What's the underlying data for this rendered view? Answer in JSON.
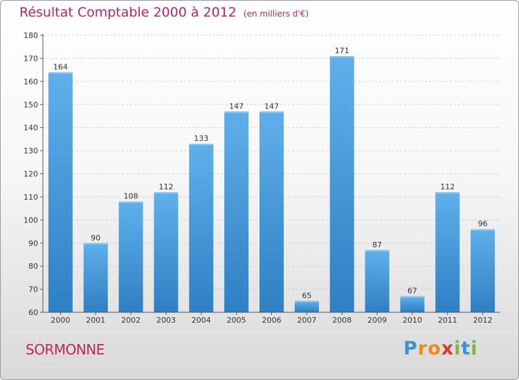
{
  "title": "Résultat Comptable 2000 à 2012",
  "subtitle": "(en milliers d'€)",
  "town": "SORMONNE",
  "logo": {
    "letters": [
      "P",
      "r",
      "o",
      "x",
      "i",
      "t",
      "i"
    ],
    "colors": [
      "#3f8fd2",
      "#f08a1c",
      "#f08a1c",
      "#d93a2b",
      "#7ab648",
      "#3f8fd2",
      "#7ab648"
    ]
  },
  "colors": {
    "bar_top": "#5fb0ea",
    "bar_bottom": "#2f7fc4",
    "title": "#c0245c"
  },
  "chart_data": {
    "type": "bar",
    "categories": [
      "2000",
      "2001",
      "2002",
      "2003",
      "2004",
      "2005",
      "2006",
      "2007",
      "2008",
      "2009",
      "2010",
      "2011",
      "2012"
    ],
    "values": [
      164,
      90,
      108,
      112,
      133,
      147,
      147,
      65,
      171,
      87,
      67,
      112,
      96
    ],
    "ylim": [
      60,
      180
    ],
    "yticks": [
      60,
      70,
      80,
      90,
      100,
      110,
      120,
      130,
      140,
      150,
      160,
      170,
      180
    ],
    "title": "Résultat Comptable 2000 à 2012",
    "xlabel": "",
    "ylabel": ""
  }
}
